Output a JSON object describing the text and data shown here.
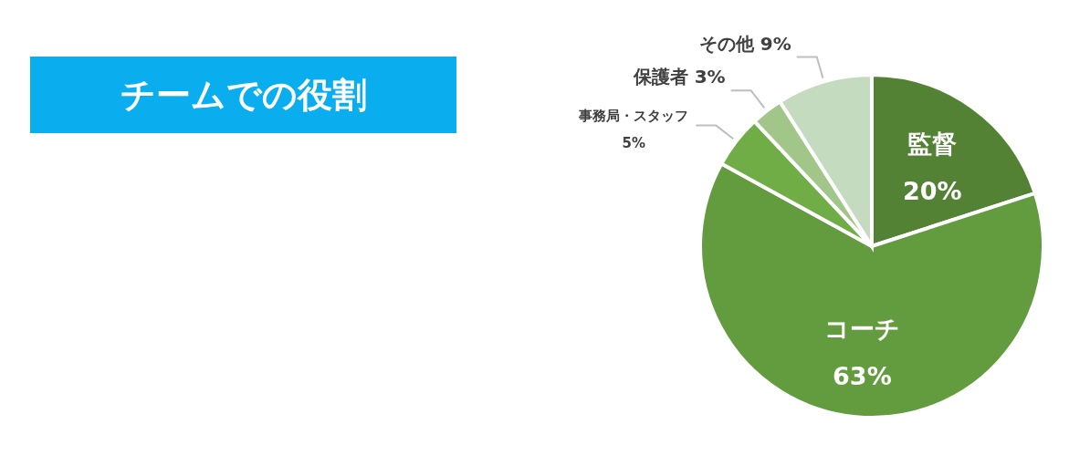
{
  "chart_data": {
    "type": "pie",
    "title": "チームでの役割",
    "categories": [
      "監督",
      "コーチ",
      "事務局・スタッフ",
      "保護者",
      "その他"
    ],
    "values": [
      20,
      63,
      5,
      3,
      9
    ],
    "colors": [
      "#548235",
      "#639c3e",
      "#70ad47",
      "#a2c68a",
      "#c5dbbf"
    ],
    "value_labels": [
      "20%",
      "63%",
      "5%",
      "3%",
      "9%"
    ],
    "legend": false
  }
}
